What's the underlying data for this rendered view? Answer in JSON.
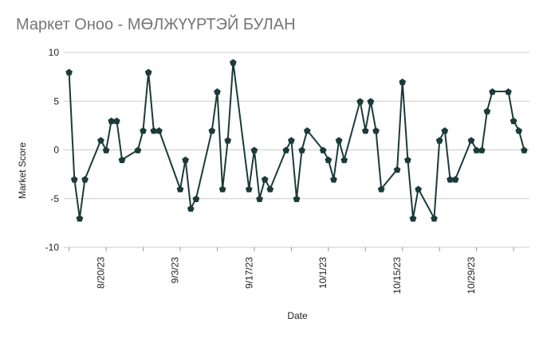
{
  "chart_data": {
    "type": "line",
    "title": "Маркет Оноо - МӨЛЖҮҮРТЭЙ БУЛАН",
    "xlabel": "Date",
    "ylabel": "Market Score",
    "ylim": [
      -10,
      10
    ],
    "yticks": [
      "10",
      "5",
      "0",
      "-5",
      "-10"
    ],
    "xticks": [
      "8/20/23",
      "9/3/23",
      "9/17/23",
      "10/1/23",
      "10/15/23",
      "10/29/23"
    ],
    "grid": true,
    "series": [
      {
        "color": "#1b3a3a",
        "marker": "pentagon",
        "points": [
          {
            "x": "2023-08-14",
            "y": 8
          },
          {
            "x": "2023-08-15",
            "y": -3
          },
          {
            "x": "2023-08-16",
            "y": -7
          },
          {
            "x": "2023-08-17",
            "y": -3
          },
          {
            "x": "2023-08-20",
            "y": 1
          },
          {
            "x": "2023-08-21",
            "y": 0
          },
          {
            "x": "2023-08-22",
            "y": 3
          },
          {
            "x": "2023-08-23",
            "y": 3
          },
          {
            "x": "2023-08-24",
            "y": -1
          },
          {
            "x": "2023-08-27",
            "y": 0
          },
          {
            "x": "2023-08-28",
            "y": 2
          },
          {
            "x": "2023-08-29",
            "y": 8
          },
          {
            "x": "2023-08-30",
            "y": 2
          },
          {
            "x": "2023-08-31",
            "y": 2
          },
          {
            "x": "2023-09-04",
            "y": -4
          },
          {
            "x": "2023-09-05",
            "y": -1
          },
          {
            "x": "2023-09-06",
            "y": -6
          },
          {
            "x": "2023-09-07",
            "y": -5
          },
          {
            "x": "2023-09-10",
            "y": 2
          },
          {
            "x": "2023-09-11",
            "y": 6
          },
          {
            "x": "2023-09-12",
            "y": -4
          },
          {
            "x": "2023-09-13",
            "y": 1
          },
          {
            "x": "2023-09-14",
            "y": 9
          },
          {
            "x": "2023-09-17",
            "y": -4
          },
          {
            "x": "2023-09-18",
            "y": 0
          },
          {
            "x": "2023-09-19",
            "y": -5
          },
          {
            "x": "2023-09-20",
            "y": -3
          },
          {
            "x": "2023-09-21",
            "y": -4
          },
          {
            "x": "2023-09-24",
            "y": 0
          },
          {
            "x": "2023-09-25",
            "y": 1
          },
          {
            "x": "2023-09-26",
            "y": -5
          },
          {
            "x": "2023-09-27",
            "y": 0
          },
          {
            "x": "2023-09-28",
            "y": 2
          },
          {
            "x": "2023-10-01",
            "y": 0
          },
          {
            "x": "2023-10-02",
            "y": -1
          },
          {
            "x": "2023-10-03",
            "y": -3
          },
          {
            "x": "2023-10-04",
            "y": 1
          },
          {
            "x": "2023-10-05",
            "y": -1
          },
          {
            "x": "2023-10-08",
            "y": 5
          },
          {
            "x": "2023-10-09",
            "y": 2
          },
          {
            "x": "2023-10-10",
            "y": 5
          },
          {
            "x": "2023-10-11",
            "y": 2
          },
          {
            "x": "2023-10-12",
            "y": -4
          },
          {
            "x": "2023-10-15",
            "y": -2
          },
          {
            "x": "2023-10-16",
            "y": 7
          },
          {
            "x": "2023-10-17",
            "y": -1
          },
          {
            "x": "2023-10-18",
            "y": -7
          },
          {
            "x": "2023-10-19",
            "y": -4
          },
          {
            "x": "2023-10-22",
            "y": -7
          },
          {
            "x": "2023-10-23",
            "y": 1
          },
          {
            "x": "2023-10-24",
            "y": 2
          },
          {
            "x": "2023-10-25",
            "y": -3
          },
          {
            "x": "2023-10-26",
            "y": -3
          },
          {
            "x": "2023-10-29",
            "y": 1
          },
          {
            "x": "2023-10-30",
            "y": 0
          },
          {
            "x": "2023-10-31",
            "y": 0
          },
          {
            "x": "2023-11-01",
            "y": 4
          },
          {
            "x": "2023-11-02",
            "y": 6
          },
          {
            "x": "2023-11-05",
            "y": 6
          },
          {
            "x": "2023-11-06",
            "y": 3
          },
          {
            "x": "2023-11-07",
            "y": 2
          },
          {
            "x": "2023-11-08",
            "y": 0
          }
        ]
      }
    ]
  }
}
